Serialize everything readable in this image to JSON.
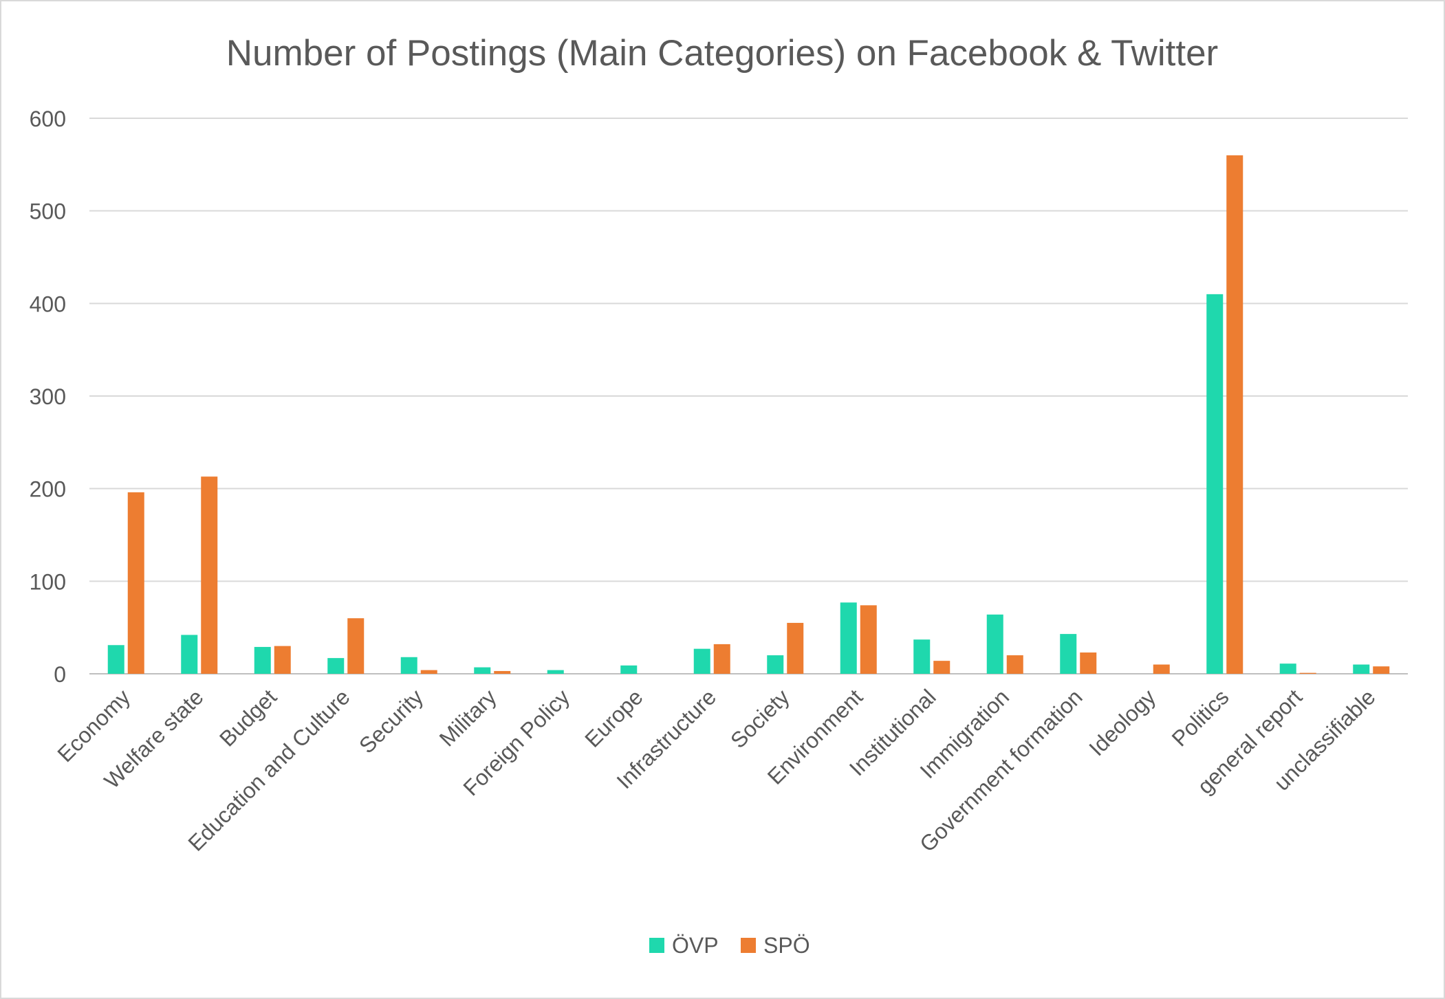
{
  "chart_data": {
    "type": "bar",
    "title": "Number of Postings (Main Categories) on Facebook & Twitter",
    "xlabel": "",
    "ylabel": "",
    "ylim": [
      0,
      600
    ],
    "yticks": [
      0,
      100,
      200,
      300,
      400,
      500,
      600
    ],
    "grid": true,
    "legend_position": "bottom",
    "categories": [
      "Economy",
      "Welfare state",
      "Budget",
      "Education and Culture",
      "Security",
      "Military",
      "Foreign Policy",
      "Europe",
      "Infrastructure",
      "Society",
      "Environment",
      "Institutional",
      "Immigration",
      "Government formation",
      "Ideology",
      "Politics",
      "general report",
      "unclassifiable"
    ],
    "series": [
      {
        "name": "ÖVP",
        "color": "#1fd8ad",
        "values": [
          31,
          42,
          29,
          17,
          18,
          7,
          4,
          9,
          27,
          20,
          77,
          37,
          64,
          43,
          0,
          410,
          11,
          10
        ]
      },
      {
        "name": "SPÖ",
        "color": "#ed7d31",
        "values": [
          196,
          213,
          30,
          60,
          4,
          3,
          0,
          0,
          32,
          55,
          74,
          14,
          20,
          23,
          10,
          560,
          1,
          8
        ]
      }
    ]
  }
}
